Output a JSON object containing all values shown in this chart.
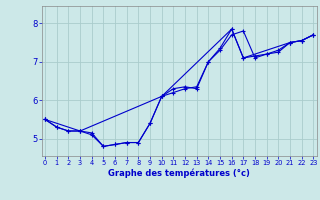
{
  "xlabel": "Graphe des températures (°c)",
  "bg_color": "#cce8e8",
  "grid_color": "#aacccc",
  "line_color": "#0000cc",
  "x_ticks": [
    0,
    1,
    2,
    3,
    4,
    5,
    6,
    7,
    8,
    9,
    10,
    11,
    12,
    13,
    14,
    15,
    16,
    17,
    18,
    19,
    20,
    21,
    22,
    23
  ],
  "y_ticks": [
    5,
    6,
    7,
    8
  ],
  "ylim": [
    4.55,
    8.45
  ],
  "xlim": [
    -0.3,
    23.3
  ],
  "series1_x": [
    0,
    1,
    2,
    3,
    4,
    5,
    6,
    7,
    8,
    9,
    10,
    11,
    12,
    13,
    14,
    15,
    16,
    17,
    18,
    19,
    20,
    21,
    22,
    23
  ],
  "series1_y": [
    5.5,
    5.3,
    5.2,
    5.2,
    5.1,
    4.8,
    4.85,
    4.9,
    4.9,
    5.4,
    6.1,
    6.3,
    6.35,
    6.3,
    7.0,
    7.3,
    7.7,
    7.8,
    7.1,
    7.2,
    7.25,
    7.5,
    7.55,
    7.7
  ],
  "series2_x": [
    0,
    1,
    2,
    3,
    4,
    5,
    6,
    7,
    8,
    9,
    10,
    11,
    12,
    13,
    14,
    15,
    16,
    17,
    18,
    19,
    20,
    21,
    22,
    23
  ],
  "series2_y": [
    5.5,
    5.3,
    5.2,
    5.2,
    5.15,
    4.8,
    4.85,
    4.9,
    4.9,
    5.4,
    6.1,
    6.2,
    6.3,
    6.35,
    7.0,
    7.35,
    7.85,
    7.1,
    7.15,
    7.2,
    7.3,
    7.5,
    7.55,
    7.7
  ],
  "series3_x": [
    0,
    3,
    10,
    16,
    17,
    21,
    22,
    23
  ],
  "series3_y": [
    5.5,
    5.2,
    6.1,
    7.85,
    7.1,
    7.5,
    7.55,
    7.7
  ]
}
